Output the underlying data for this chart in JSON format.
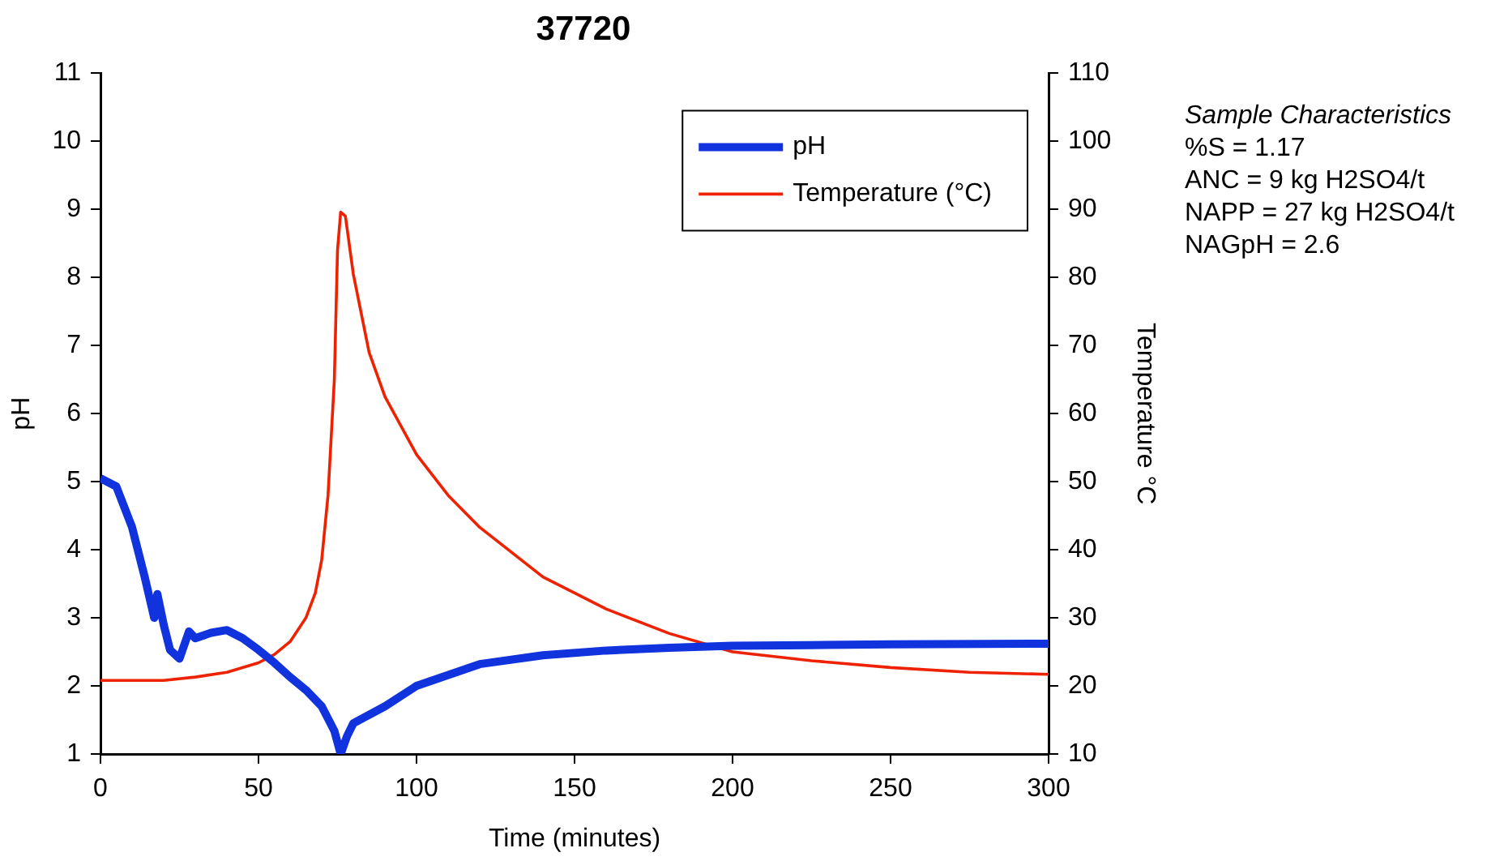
{
  "chart_data": {
    "type": "line",
    "title": "37720",
    "xlabel": "Time (minutes)",
    "ylabel": "pH",
    "y2label": "Temperature °C",
    "xlim": [
      0,
      300
    ],
    "xticks": [
      0,
      50,
      100,
      150,
      200,
      250,
      300
    ],
    "ylim": [
      1,
      11
    ],
    "yticks": [
      1,
      2,
      3,
      4,
      5,
      6,
      7,
      8,
      9,
      10,
      11
    ],
    "y2lim": [
      10,
      110
    ],
    "y2ticks": [
      10,
      20,
      30,
      40,
      50,
      60,
      70,
      80,
      90,
      100,
      110
    ],
    "grid": false,
    "legend": "top right",
    "marker": "none",
    "line_style": "solid",
    "annotations": [
      "Sample Characteristics",
      "%S = 1.17",
      "ANC = 9 kg H2SO4/t",
      "NAPP = 27 kg H2SO4/t",
      "NAGpH = 2.6"
    ],
    "series": [
      {
        "name": "pH",
        "color": "#1133dd",
        "x": [
          0,
          5,
          10,
          14,
          17,
          18,
          20,
          22,
          25,
          28,
          30,
          35,
          40,
          45,
          50,
          55,
          60,
          65,
          70,
          74,
          76,
          78,
          80,
          90,
          100,
          120,
          140,
          160,
          180,
          200,
          225,
          250,
          300
        ],
        "values": [
          5.05,
          4.93,
          4.33,
          3.6,
          3.0,
          3.35,
          2.9,
          2.53,
          2.4,
          2.8,
          2.7,
          2.78,
          2.82,
          2.7,
          2.53,
          2.34,
          2.13,
          1.94,
          1.7,
          1.34,
          1.0,
          1.26,
          1.45,
          1.7,
          2.0,
          2.32,
          2.45,
          2.52,
          2.56,
          2.59,
          2.6,
          2.61,
          2.62
        ]
      },
      {
        "name": "Temperature (°C)",
        "color": "#ee2200",
        "axis": "y2",
        "x": [
          0,
          20,
          30,
          40,
          50,
          55,
          60,
          65,
          68,
          70,
          72,
          74,
          75,
          76,
          77.5,
          80,
          85,
          90,
          100,
          110,
          120,
          140,
          160,
          180,
          200,
          225,
          250,
          275,
          300
        ],
        "values": [
          20.8,
          20.8,
          21.3,
          22,
          23.4,
          24.6,
          26.5,
          30,
          33.7,
          38.5,
          48,
          65,
          84,
          89.6,
          89,
          80.5,
          69,
          62.5,
          54,
          48,
          43.3,
          36,
          31.3,
          27.7,
          25,
          23.7,
          22.7,
          22,
          21.7
        ]
      }
    ]
  }
}
